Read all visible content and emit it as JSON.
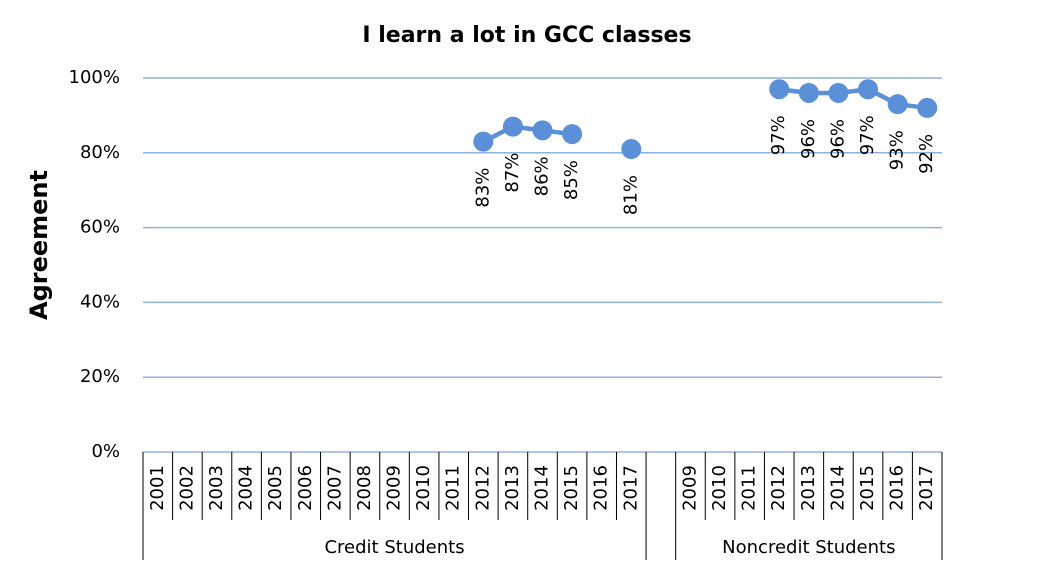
{
  "chart_data": {
    "type": "line",
    "title": "I learn a lot in GCC classes",
    "y_label": "Agreement",
    "color": "#5b8fd8",
    "grid": true,
    "ylim": [
      0,
      100
    ],
    "yticks": [
      {
        "value": 0,
        "label": "0%"
      },
      {
        "value": 20,
        "label": "20%"
      },
      {
        "value": 40,
        "label": "40%"
      },
      {
        "value": 60,
        "label": "60%"
      },
      {
        "value": 80,
        "label": "80%"
      },
      {
        "value": 100,
        "label": "100%"
      }
    ],
    "groups": [
      {
        "name": "Credit Students",
        "categories": [
          "2001",
          "2002",
          "2003",
          "2004",
          "2005",
          "2006",
          "2007",
          "2008",
          "2009",
          "2010",
          "2011",
          "2012",
          "2013",
          "2014",
          "2015",
          "2016",
          "2017"
        ],
        "values": [
          null,
          null,
          null,
          null,
          null,
          null,
          null,
          null,
          null,
          null,
          null,
          83,
          87,
          86,
          85,
          null,
          81
        ],
        "value_labels": [
          null,
          null,
          null,
          null,
          null,
          null,
          null,
          null,
          null,
          null,
          null,
          "83%",
          "87%",
          "86%",
          "85%",
          null,
          "81%"
        ]
      },
      {
        "name": "Noncredit Students",
        "categories": [
          "2009",
          "2010",
          "2011",
          "2012",
          "2013",
          "2014",
          "2015",
          "2016",
          "2017"
        ],
        "values": [
          null,
          null,
          null,
          97,
          96,
          96,
          97,
          93,
          92
        ],
        "value_labels": [
          null,
          null,
          null,
          "97%",
          "96%",
          "96%",
          "97%",
          "93%",
          "92%"
        ]
      }
    ]
  }
}
